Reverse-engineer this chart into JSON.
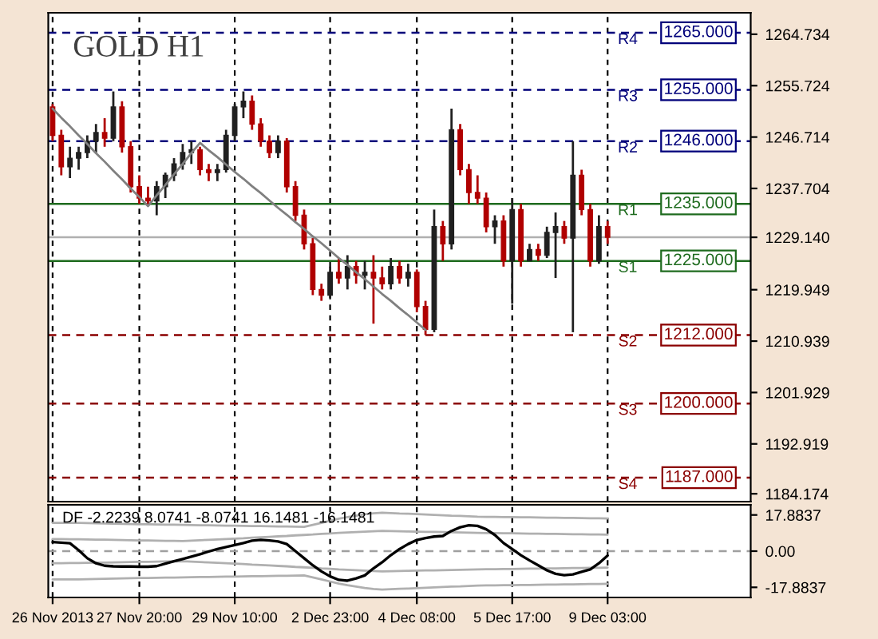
{
  "chart_data": [
    {
      "type": "candlestick",
      "title": "GOLD H1",
      "categories": [
        null,
        null,
        null,
        null,
        null,
        null,
        null,
        null,
        null,
        null,
        null,
        null,
        null,
        null,
        null,
        null,
        null,
        null,
        null,
        null,
        null,
        null,
        null,
        null,
        null,
        null,
        null,
        null,
        null,
        null,
        null,
        null,
        null,
        null,
        null,
        null,
        null,
        null,
        null,
        null,
        null,
        null,
        null,
        null,
        null,
        null,
        null,
        null,
        null,
        null,
        null,
        null,
        null,
        null,
        null,
        null,
        null,
        null,
        null,
        null,
        null,
        null,
        null,
        null,
        null,
        null,
        null,
        null,
        null,
        null,
        null,
        null,
        null,
        null,
        null,
        null,
        null,
        null,
        null,
        null,
        null
      ],
      "ohlc": [
        [
          1252,
          1252.5,
          1246,
          1247
        ],
        [
          1247,
          1248,
          1240,
          1241.5
        ],
        [
          1241.5,
          1245,
          1239.5,
          1243
        ],
        [
          1243,
          1245,
          1241,
          1244
        ],
        [
          1244,
          1247,
          1243,
          1246
        ],
        [
          1246,
          1249,
          1244,
          1247.5
        ],
        [
          1247.5,
          1250,
          1245,
          1246.5
        ],
        [
          1246.5,
          1254.7,
          1246,
          1252
        ],
        [
          1252,
          1253,
          1244,
          1245
        ],
        [
          1245,
          1246,
          1237,
          1238
        ],
        [
          1238,
          1240,
          1235,
          1236
        ],
        [
          1236,
          1238,
          1234.6,
          1235.5
        ],
        [
          1235.5,
          1239,
          1233,
          1238
        ],
        [
          1238,
          1240.5,
          1236,
          1240
        ],
        [
          1240,
          1243,
          1239,
          1242
        ],
        [
          1242,
          1245.5,
          1241,
          1244
        ],
        [
          1244,
          1246,
          1242,
          1244.5
        ],
        [
          1244.5,
          1245,
          1240,
          1241
        ],
        [
          1241,
          1242,
          1239,
          1240.5
        ],
        [
          1240.5,
          1242,
          1239,
          1241
        ],
        [
          1241,
          1248,
          1240.5,
          1247
        ],
        [
          1247,
          1252.5,
          1246,
          1252
        ],
        [
          1252,
          1254.7,
          1250,
          1253
        ],
        [
          1253,
          1254,
          1248,
          1249
        ],
        [
          1249,
          1250,
          1245,
          1246
        ],
        [
          1246,
          1247,
          1243,
          1244
        ],
        [
          1244,
          1247,
          1243,
          1246
        ],
        [
          1246,
          1246.5,
          1237,
          1238
        ],
        [
          1238,
          1239,
          1232,
          1233
        ],
        [
          1233,
          1234,
          1227,
          1228
        ],
        [
          1228,
          1229,
          1219,
          1220
        ],
        [
          1220,
          1221,
          1218,
          1219
        ],
        [
          1219,
          1224,
          1218.5,
          1223
        ],
        [
          1223,
          1225.5,
          1221,
          1222
        ],
        [
          1222,
          1226,
          1220,
          1224
        ],
        [
          1224,
          1225,
          1221,
          1222.5
        ],
        [
          1222.5,
          1225,
          1220,
          1223
        ],
        [
          1223,
          1226,
          1214,
          1222
        ],
        [
          1222,
          1224,
          1220,
          1221
        ],
        [
          1221,
          1225.5,
          1220,
          1224
        ],
        [
          1224,
          1225,
          1221,
          1222
        ],
        [
          1222,
          1224.5,
          1220.5,
          1223
        ],
        [
          1223,
          1223.5,
          1216,
          1217
        ],
        [
          1217,
          1218,
          1212,
          1213
        ],
        [
          1213,
          1234,
          1212.5,
          1231
        ],
        [
          1231,
          1232,
          1225,
          1228
        ],
        [
          1228,
          1251.7,
          1227,
          1248
        ],
        [
          1248,
          1249,
          1240,
          1241
        ],
        [
          1241,
          1242,
          1235,
          1237
        ],
        [
          1237,
          1240,
          1235,
          1236
        ],
        [
          1236,
          1237,
          1230,
          1231
        ],
        [
          1231,
          1233,
          1228,
          1232
        ],
        [
          1232,
          1233,
          1224,
          1225
        ],
        [
          1225,
          1236,
          1217.5,
          1234
        ],
        [
          1234,
          1235,
          1224,
          1225
        ],
        [
          1225,
          1228,
          1225,
          1227
        ],
        [
          1227,
          1228,
          1225,
          1226
        ],
        [
          1226,
          1231,
          1225.5,
          1230
        ],
        [
          1230,
          1233.5,
          1222,
          1231
        ],
        [
          1231,
          1232,
          1228,
          1229
        ],
        [
          1229,
          1246,
          1212.5,
          1240
        ],
        [
          1240,
          1241,
          1233,
          1234
        ],
        [
          1234,
          1235,
          1224,
          1225
        ],
        [
          1225,
          1233,
          1224.5,
          1231
        ],
        [
          1231,
          1232,
          1228,
          1229.14
        ],
        null,
        null,
        null,
        null,
        null,
        null,
        null,
        null,
        null,
        null,
        null,
        null,
        null,
        null,
        null,
        null
      ],
      "colors": [
        "#b00000",
        "#b00000",
        "#202020",
        "#202020",
        "#202020",
        "#202020",
        "#b00000",
        "#202020",
        "#b00000",
        "#b00000",
        "#b00000",
        "#b00000",
        "#202020",
        "#202020",
        "#202020",
        "#202020",
        "#202020",
        "#b00000",
        "#b00000",
        "#202020",
        "#202020",
        "#202020",
        "#202020",
        "#b00000",
        "#b00000",
        "#b00000",
        "#202020",
        "#b00000",
        "#b00000",
        "#b00000",
        "#b00000",
        "#b00000",
        "#202020",
        "#b00000",
        "#202020",
        "#b00000",
        "#202020",
        "#b00000",
        "#b00000",
        "#202020",
        "#b00000",
        "#202020",
        "#b00000",
        "#b00000",
        "#202020",
        "#b00000",
        "#202020",
        "#b00000",
        "#b00000",
        "#b00000",
        "#b00000",
        "#202020",
        "#b00000",
        "#202020",
        "#b00000",
        "#202020",
        "#b00000",
        "#202020",
        "#202020",
        "#b00000",
        "#202020",
        "#b00000",
        "#b00000",
        "#202020",
        "#b00000",
        null,
        null,
        null,
        null,
        null,
        null,
        null,
        null,
        null,
        null,
        null,
        null,
        null,
        null,
        null,
        null
      ],
      "series": [
        {
          "type": "line",
          "color": "#808080",
          "values": [
            1251.7,
            1250.1,
            1248.6,
            1247.0,
            1245.5,
            1243.9,
            1242.4,
            1240.8,
            1239.3,
            1237.7,
            1236.2,
            1234.6,
            1236.5,
            1238.3,
            1240.2,
            1242.0,
            1243.9,
            1245.7,
            1244.4,
            1243.2,
            1241.9,
            1240.6,
            1239.4,
            1238.1,
            1236.9,
            1235.6,
            1234.3,
            1233.1,
            1231.8,
            1230.6,
            1229.3,
            1228.1,
            1226.8,
            1225.5,
            1224.3,
            1223.0,
            1221.8,
            1220.5,
            1219.2,
            1218.0,
            1216.7,
            1215.5,
            1214.2,
            1212.9,
            null,
            null,
            null,
            null,
            null,
            null,
            null,
            null,
            null,
            null,
            null,
            null,
            null,
            null,
            null,
            null,
            null,
            null,
            null,
            null,
            null,
            null,
            null,
            null,
            null,
            null,
            null,
            null,
            null,
            null,
            null,
            null,
            null,
            null,
            null,
            null,
            null
          ]
        }
      ],
      "ylim": [
        1182.8,
        1268.5
      ],
      "yticks": [
        1264.734,
        1255.724,
        1246.714,
        1237.704,
        {
          "value": 1229.14,
          "label": "1229.140"
        },
        1219.949,
        1210.939,
        1201.929,
        1192.919,
        1184.174
      ],
      "tick_labels": "y",
      "grid": "x",
      "ref_lines": [
        {
          "axis": "y",
          "value": 1265,
          "label": "R4",
          "color": "#00007a",
          "line_style": "dashed"
        },
        {
          "axis": "y",
          "value": 1255,
          "label": "R3",
          "color": "#00007a",
          "line_style": "dashed"
        },
        {
          "axis": "y",
          "value": 1246,
          "label": "R2",
          "color": "#00007a",
          "line_style": "dashed"
        },
        {
          "axis": "y",
          "value": 1235,
          "label": "R1",
          "color": "#1e6b1e",
          "line_style": "solid"
        },
        {
          "axis": "y",
          "value": 1225,
          "label": "S1",
          "color": "#1e6b1e",
          "line_style": "solid"
        },
        {
          "axis": "y",
          "value": 1212,
          "label": "S2",
          "color": "#8b0000",
          "line_style": "dashed"
        },
        {
          "axis": "y",
          "value": 1200,
          "label": "S3",
          "color": "#8b0000",
          "line_style": "dashed"
        },
        {
          "axis": "y",
          "value": 1187,
          "label": "S4",
          "color": "#8b0000",
          "line_style": "dashed"
        },
        {
          "axis": "y",
          "value": 1229.14,
          "color": "#b0b0b0",
          "line_style": "solid"
        }
      ],
      "annotations": [
        {
          "text": "1265.000",
          "y": 1265
        },
        {
          "text": "1255.000",
          "y": 1255
        },
        {
          "text": "1246.000",
          "y": 1246
        },
        {
          "text": "1235.000",
          "y": 1235
        },
        {
          "text": "1225.000",
          "y": 1225
        },
        {
          "text": "1212.000",
          "y": 1212
        },
        {
          "text": "1200.000",
          "y": 1200
        },
        {
          "text": "1187.000",
          "y": 1187
        }
      ]
    },
    {
      "type": "line",
      "title": "DF -2.2239 8.0741 -8.0741 16.1481 -16.1481",
      "categories": [
        "26 Nov 2013",
        null,
        null,
        null,
        null,
        null,
        null,
        null,
        null,
        null,
        "27 Nov 20:00",
        null,
        null,
        null,
        null,
        null,
        null,
        null,
        null,
        null,
        null,
        "29 Nov 10:00",
        null,
        null,
        null,
        null,
        null,
        null,
        null,
        null,
        null,
        null,
        "2 Dec 23:00",
        null,
        null,
        null,
        null,
        null,
        null,
        null,
        null,
        null,
        "4 Dec 08:00",
        null,
        null,
        null,
        null,
        null,
        null,
        null,
        null,
        null,
        null,
        "5 Dec 17:00",
        null,
        null,
        null,
        null,
        null,
        null,
        null,
        null,
        null,
        null,
        "9 Dec 03:00",
        null,
        null,
        null,
        null,
        null,
        null,
        null,
        null,
        null,
        null,
        null,
        null,
        null,
        null,
        null,
        null
      ],
      "series": [
        {
          "color": "#b0b0b0",
          "values": [
            14,
            14,
            14,
            14,
            13.9,
            13.8,
            13.7,
            13.6,
            13.5,
            13.4,
            13.3,
            13.3,
            13.2,
            13.1,
            13.1,
            13,
            12.9,
            12.8,
            12.8,
            12.7,
            12.6,
            12.6,
            12.5,
            12.4,
            12.4,
            12.3,
            12.2,
            12.2,
            12.1,
            12,
            13,
            14,
            15,
            16,
            16.8,
            17.5,
            18.2,
            18.7,
            19,
            18.8,
            18.6,
            18.5,
            18.3,
            18.1,
            17.9,
            17.7,
            17.5,
            17.4,
            17.2,
            17,
            16.9,
            16.9,
            16.8,
            16.8,
            16.7,
            16.7,
            16.6,
            16.5,
            16.5,
            16.4,
            16.4,
            16.3,
            16.2,
            16.2,
            16.1,
            null,
            null,
            null,
            null,
            null,
            null,
            null,
            null,
            null,
            null,
            null,
            null,
            null,
            null,
            null,
            null
          ]
        },
        {
          "color": "#b0b0b0",
          "values": [
            6,
            6,
            5.9,
            5.9,
            5.8,
            5.7,
            5.7,
            5.6,
            5.5,
            5.4,
            5.3,
            5.3,
            5.2,
            5.1,
            5.1,
            5,
            5.2,
            5.4,
            5.6,
            5.8,
            6,
            6.2,
            6.4,
            6.7,
            6.9,
            7.1,
            7.3,
            7.5,
            7.8,
            8,
            8.2,
            8.5,
            8.7,
            9,
            9.2,
            9.4,
            9.6,
            9.8,
            10,
            9.9,
            9.8,
            9.7,
            9.6,
            9.5,
            9.5,
            9.4,
            9.3,
            9.2,
            9.1,
            9,
            8.9,
            8.9,
            8.8,
            8.8,
            8.7,
            8.6,
            8.6,
            8.5,
            8.5,
            8.4,
            8.3,
            8.3,
            8.2,
            8.2,
            8.1,
            null,
            null,
            null,
            null,
            null,
            null,
            null,
            null,
            null,
            null,
            null,
            null,
            null,
            null,
            null,
            null
          ]
        },
        {
          "color": "#b0b0b0",
          "values": [
            -6,
            -6,
            -5.9,
            -5.9,
            -5.8,
            -5.7,
            -5.7,
            -5.6,
            -5.5,
            -5.4,
            -5.3,
            -5.3,
            -5.2,
            -5.1,
            -5.1,
            -5,
            -5.2,
            -5.4,
            -5.6,
            -5.8,
            -6,
            -6.2,
            -6.4,
            -6.7,
            -6.9,
            -7.1,
            -7.3,
            -7.5,
            -7.8,
            -8,
            -8.2,
            -8.5,
            -8.7,
            -9,
            -9.2,
            -9.4,
            -9.6,
            -9.8,
            -10,
            -9.9,
            -9.8,
            -9.7,
            -9.6,
            -9.5,
            -9.5,
            -9.4,
            -9.3,
            -9.2,
            -9.1,
            -9,
            -8.9,
            -8.9,
            -8.8,
            -8.8,
            -8.7,
            -8.6,
            -8.6,
            -8.5,
            -8.5,
            -8.4,
            -8.3,
            -8.3,
            -8.2,
            -8.2,
            -8.1,
            null,
            null,
            null,
            null,
            null,
            null,
            null,
            null,
            null,
            null,
            null,
            null,
            null,
            null,
            null,
            null
          ]
        },
        {
          "color": "#b0b0b0",
          "values": [
            -14,
            -14,
            -14,
            -14,
            -13.9,
            -13.8,
            -13.7,
            -13.6,
            -13.5,
            -13.4,
            -13.3,
            -13.3,
            -13.2,
            -13.1,
            -13.1,
            -13,
            -12.9,
            -12.8,
            -12.8,
            -12.7,
            -12.6,
            -12.6,
            -12.5,
            -12.4,
            -12.4,
            -12.3,
            -12.2,
            -12.2,
            -12.1,
            -12,
            -13,
            -14,
            -15,
            -16,
            -16.8,
            -17.5,
            -18.2,
            -18.7,
            -19,
            -18.8,
            -18.6,
            -18.5,
            -18.3,
            -18.1,
            -17.9,
            -17.7,
            -17.5,
            -17.4,
            -17.2,
            -17,
            -16.9,
            -16.9,
            -16.8,
            -16.8,
            -16.7,
            -16.7,
            -16.6,
            -16.5,
            -16.5,
            -16.4,
            -16.4,
            -16.3,
            -16.2,
            -16.2,
            -16.1,
            null,
            null,
            null,
            null,
            null,
            null,
            null,
            null,
            null,
            null,
            null,
            null,
            null,
            null,
            null,
            null
          ]
        },
        {
          "color": "#000000",
          "values": [
            4.5,
            4.2,
            3.9,
            0.5,
            -3.5,
            -6,
            -7.2,
            -7.5,
            -7.6,
            -7.6,
            -7.7,
            -7.7,
            -7.4,
            -6.2,
            -5,
            -3.9,
            -2.7,
            -1.5,
            -0.2,
            1,
            2,
            3,
            4,
            5.2,
            5.6,
            5.3,
            4.8,
            3.5,
            0,
            -3.5,
            -7,
            -10,
            -12.5,
            -14.2,
            -14.6,
            -13.5,
            -12,
            -8.5,
            -5.5,
            -2,
            1,
            3.5,
            5.5,
            6.5,
            7.2,
            7.5,
            10,
            11.8,
            12.8,
            12.5,
            10.8,
            8,
            4,
            1,
            -2,
            -4.6,
            -7,
            -9.5,
            -11.2,
            -11.9,
            -11.5,
            -10.2,
            -9,
            -6,
            -2.2,
            null,
            null,
            null,
            null,
            null,
            null,
            null,
            null,
            null,
            null,
            null,
            null,
            null,
            null,
            null,
            null
          ]
        }
      ],
      "ylim": [
        -22.9,
        22.9
      ],
      "yticks": [
        17.8837,
        {
          "value": 0,
          "label": "0.00"
        },
        -17.8837
      ],
      "grid": "x",
      "ref_lines": [
        {
          "axis": "y",
          "value": 0,
          "color": "#a0a0a0",
          "line_style": "dashed"
        }
      ]
    }
  ]
}
